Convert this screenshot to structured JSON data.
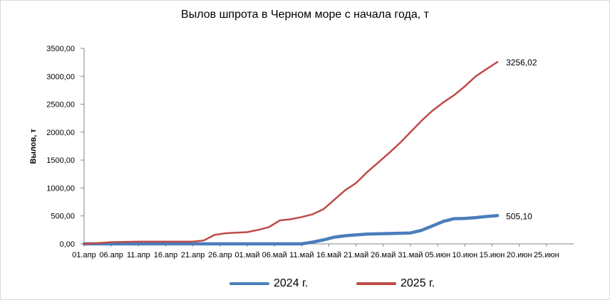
{
  "chart_data": {
    "type": "line",
    "title": "Вылов шпрота в Черном море с начала года, т",
    "ylabel": "Вылов, т",
    "xlabel": "",
    "ylim": [
      0,
      3500
    ],
    "y_ticks": [
      "0,00",
      "500,00",
      "1000,00",
      "1500,00",
      "2000,00",
      "2500,00",
      "3000,00",
      "3500,00"
    ],
    "x_ticks": [
      "01.апр",
      "06.апр",
      "11.апр",
      "16.апр",
      "21.апр",
      "26.апр",
      "01.май",
      "06.май",
      "11.май",
      "16.май",
      "21.май",
      "26.май",
      "31.май",
      "05.июн",
      "10.июн",
      "15.июн",
      "20.июн",
      "25.июн"
    ],
    "series": [
      {
        "name": "2024 г.",
        "color": "#4a7ebb",
        "x": [
          "01.апр",
          "11.май",
          "13.май",
          "15.май",
          "17.май",
          "19.май",
          "21.май",
          "23.май",
          "25.май",
          "27.май",
          "29.май",
          "31.май",
          "02.июн",
          "04.июн",
          "06.июн",
          "08.июн",
          "10.июн",
          "12.июн",
          "14.июн",
          "16.июн"
        ],
        "values": [
          0,
          0,
          30,
          70,
          120,
          145,
          160,
          175,
          180,
          185,
          190,
          195,
          240,
          320,
          400,
          450,
          455,
          470,
          490,
          505.1
        ],
        "end_label": "505,10"
      },
      {
        "name": "2025 г.",
        "color": "#be4b48",
        "x": [
          "01.апр",
          "03.апр",
          "06.апр",
          "11.апр",
          "16.апр",
          "21.апр",
          "23.апр",
          "25.апр",
          "27.апр",
          "29.апр",
          "01.май",
          "03.май",
          "05.май",
          "07.май",
          "09.май",
          "11.май",
          "13.май",
          "15.май",
          "17.май",
          "19.май",
          "21.май",
          "23.май",
          "25.май",
          "27.май",
          "29.май",
          "31.май",
          "02.июн",
          "04.июн",
          "06.июн",
          "08.июн",
          "10.июн",
          "12.июн",
          "14.июн",
          "16.июн"
        ],
        "values": [
          0,
          10,
          30,
          40,
          40,
          40,
          60,
          160,
          190,
          200,
          210,
          250,
          300,
          420,
          440,
          480,
          530,
          620,
          790,
          960,
          1090,
          1280,
          1450,
          1620,
          1800,
          2000,
          2200,
          2380,
          2530,
          2660,
          2820,
          3000,
          3130,
          3256.02
        ],
        "end_label": "3256,02"
      }
    ],
    "grid": false,
    "legend_position": "bottom"
  }
}
